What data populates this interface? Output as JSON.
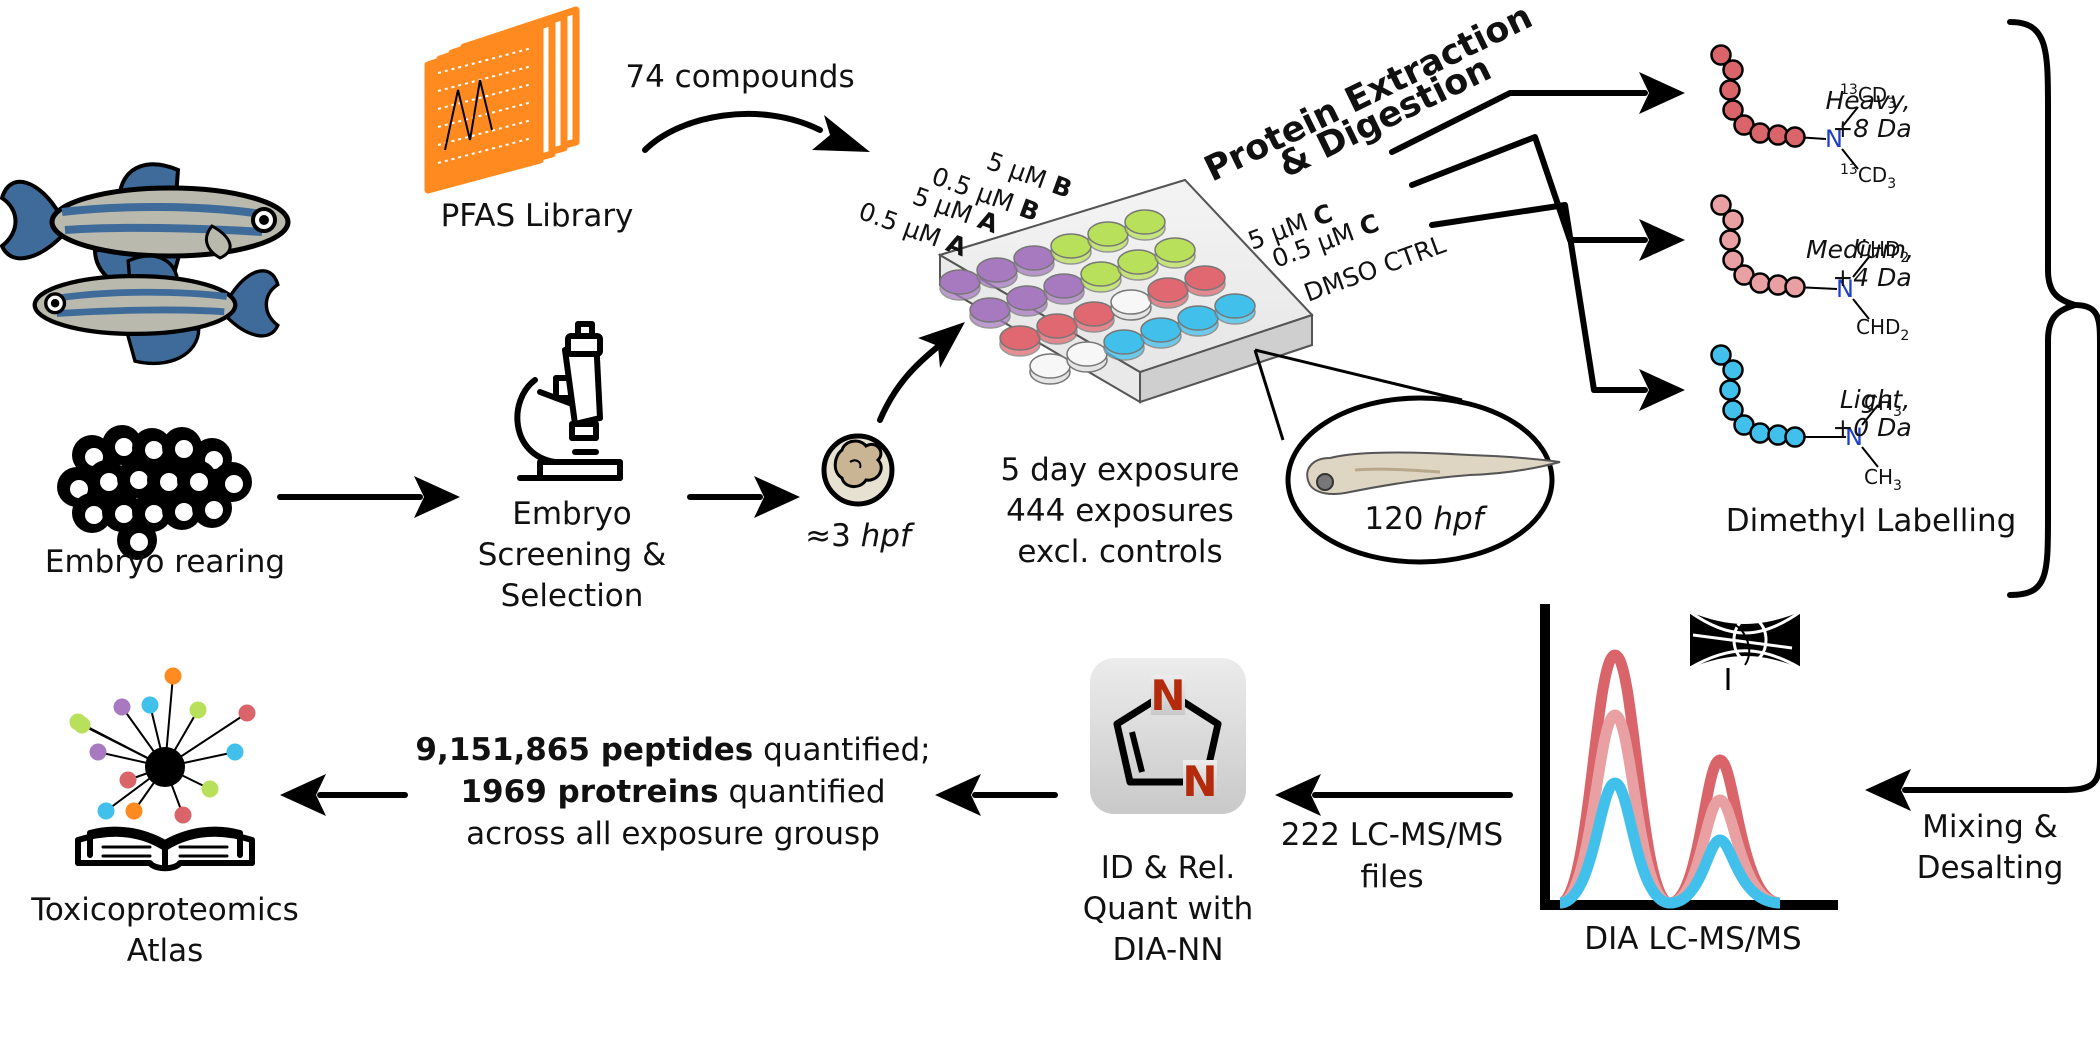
{
  "labels": {
    "embryo_rearing": "Embryo rearing",
    "screening_l1": "Embryo",
    "screening_l2": "Screening &",
    "screening_l3": "Selection",
    "library": "PFAS Library",
    "compounds": "74 compounds",
    "hpf3_prefix": "≈3 ",
    "hpf_unit": "hpf",
    "exposure_l1": "5 day exposure",
    "exposure_l2": "444 exposures",
    "exposure_l3": "excl. controls",
    "hpf120_prefix": "120 ",
    "extraction_l1": "Protein Extraction",
    "extraction_l2": "& Digestion",
    "dimethyl": "Dimethyl  Labelling",
    "mixing_l1": "Mixing &",
    "mixing_l2": "Desalting",
    "lcms": "DIA LC-MS/MS",
    "files_l1": "222 LC-MS/MS",
    "files_l2": "files",
    "quant_l1": "ID & Rel.",
    "quant_l2": "Quant with",
    "quant_l3": "DIA-NN",
    "peptides_count": "9,151,865 peptides",
    "quantified": " quantified;",
    "proteins_count": "1969 protreins",
    "quantified2": " quantified",
    "across": "across all exposure grousp",
    "atlas_l1": "Toxicoproteomics",
    "atlas_l2": "Atlas"
  },
  "plate_labels": {
    "b5_conc": "5 μM ",
    "b5_cmp": "B",
    "b05_conc": "0.5 μM ",
    "b05_cmp": "B",
    "a5_conc": "5 μM ",
    "a5_cmp": "A",
    "a05_conc": "0.5 μM ",
    "a05_cmp": "A",
    "c5_conc": "5 μM ",
    "c5_cmp": "C",
    "c05_conc": "0.5 μM ",
    "c05_cmp": "C",
    "ctrl": "DMSO CTRL"
  },
  "labelling": [
    {
      "name": "Heavy,",
      "shift": "+8 Da",
      "sub1_pre": "13",
      "sub1": "CD",
      "sub1_sub": "3",
      "sub2_pre": "13",
      "sub2": "CD",
      "sub2_sub": "3",
      "nitrogen": "N",
      "color": "#d9646a"
    },
    {
      "name": "Medium,",
      "shift": "+4 Da",
      "sub1_pre": "",
      "sub1": "CHD",
      "sub1_sub": "2",
      "sub2_pre": "",
      "sub2": "CHD",
      "sub2_sub": "2",
      "nitrogen": "N",
      "color": "#e8a0a3"
    },
    {
      "name": "Light,",
      "shift": "+0 Da",
      "sub1_pre": "",
      "sub1": "CH",
      "sub1_sub": "3",
      "sub2_pre": "",
      "sub2": "CH",
      "sub2_sub": "3",
      "nitrogen": "N",
      "color": "#42c0ec"
    }
  ],
  "software_icon": {
    "n1": "N",
    "n2": "N"
  },
  "colors": {
    "library_orange": "#ff8a1f",
    "heavy": "#d9646a",
    "medium": "#e8a0a3",
    "light": "#42c0ec",
    "lime": "#b9e05a",
    "purple": "#a77ac0",
    "fish_blue": "#3f6b9a",
    "nitrogen_blue": "#1f3fc4",
    "nitrogen_red": "#b32b0b"
  },
  "icons": [
    "zebrafish-icon",
    "embryo-cluster-icon",
    "microscope-icon",
    "pfas-library-icon",
    "single-embryo-icon",
    "well-plate-icon",
    "larva-icon",
    "peptide-chain-icon",
    "mass-spec-icon",
    "chromatogram-icon",
    "dia-nn-logo-icon",
    "network-icon",
    "open-book-icon"
  ]
}
